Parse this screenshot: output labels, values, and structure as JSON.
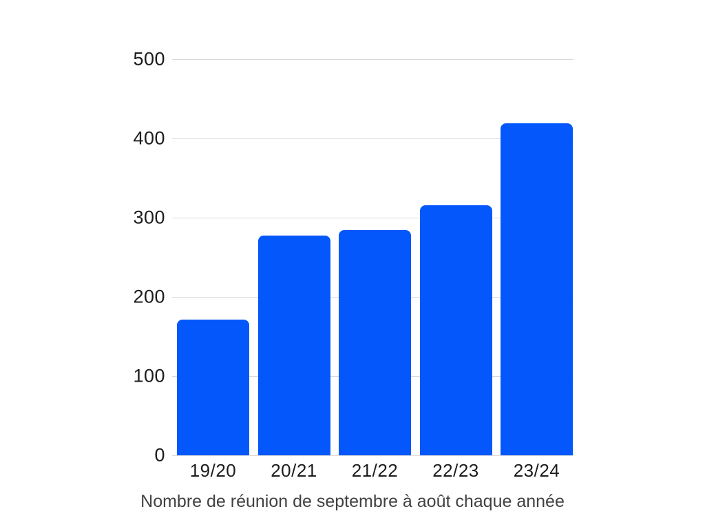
{
  "chart_data": {
    "type": "bar",
    "categories": [
      "19/20",
      "20/21",
      "21/22",
      "22/23",
      "23/24"
    ],
    "values": [
      171,
      277,
      284,
      316,
      419
    ],
    "title": "",
    "xlabel": "Nombre de réunion de septembre à août chaque année",
    "ylabel": "",
    "caption": "Nombre de réunion de septembre à août chaque année",
    "ylim": [
      0,
      500
    ],
    "yticks": [
      0,
      100,
      200,
      300,
      400,
      500
    ],
    "grid": true,
    "legend": false,
    "colors": {
      "bar": "#0458fb",
      "gridline": "#d9d9d9",
      "tick_label": "#1c1c1c",
      "caption": "#414141",
      "background": "#ffffff"
    }
  }
}
